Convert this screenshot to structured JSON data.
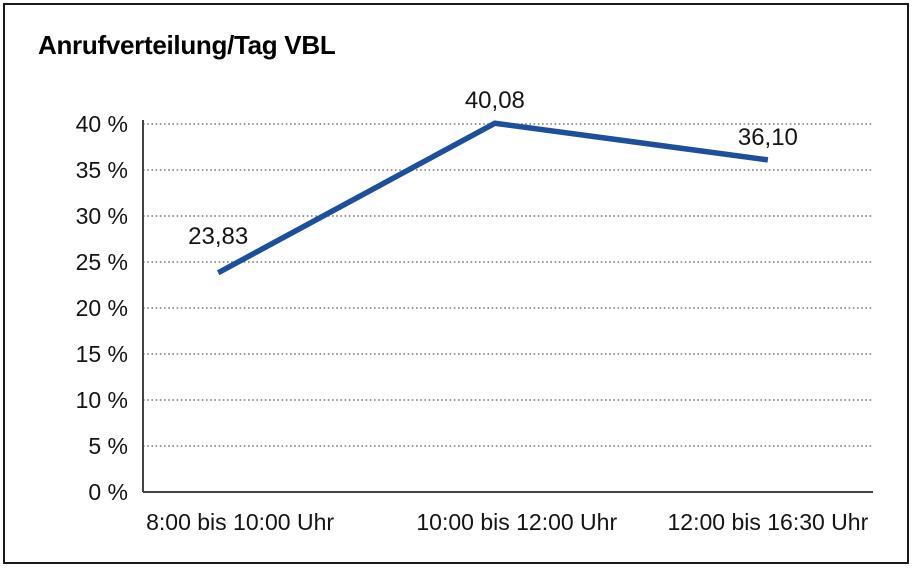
{
  "chart_data": {
    "type": "line",
    "title": "Anrufverteilung/Tag VBL",
    "categories": [
      "8:00 bis 10:00 Uhr",
      "10:00 bis 12:00 Uhr",
      "12:00 bis 16:30 Uhr"
    ],
    "values": [
      23.83,
      40.08,
      36.1
    ],
    "data_labels": [
      "23,83",
      "40,08",
      "36,10"
    ],
    "xlabel": "",
    "ylabel": "",
    "ylim": [
      0,
      40
    ],
    "ytick_step": 5,
    "ytick_labels": [
      "0 %",
      "5 %",
      "10 %",
      "15 %",
      "20 %",
      "25 %",
      "30 %",
      "35 %",
      "40 %"
    ],
    "grid": "horizontal-dotted",
    "legend": "none"
  },
  "colors": {
    "line": "#1c4f9c",
    "axis": "#444444",
    "grid": "#787878",
    "text": "#141414",
    "border": "#1a1a1a",
    "background": "#ffffff"
  }
}
